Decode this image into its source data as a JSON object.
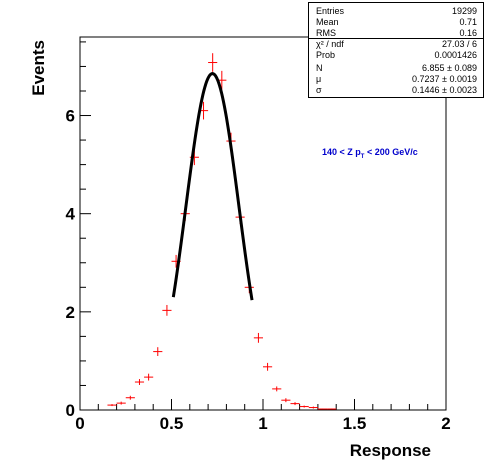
{
  "stats": {
    "rows": [
      {
        "label": "Entries",
        "value": "19299"
      },
      {
        "label": "Mean",
        "value": "0.71"
      },
      {
        "label": "RMS",
        "value": "0.16"
      },
      {
        "label": "χ² / ndf",
        "value": "27.03 / 6"
      },
      {
        "label": "Prob",
        "value": "0.0001426"
      },
      {
        "label": "N",
        "value": "6.855 ± 0.089"
      },
      {
        "label": "μ",
        "value": "0.7237 ± 0.0019"
      },
      {
        "label": "σ",
        "value": "0.1446 ± 0.0023"
      }
    ]
  },
  "chart_data": {
    "type": "scatter",
    "xlabel": "Response",
    "ylabel": "Events",
    "xlim": [
      0,
      2
    ],
    "ylim": [
      0,
      7.6
    ],
    "x_ticks": [
      0,
      0.5,
      1,
      1.5,
      2
    ],
    "x_tick_labels": [
      "0",
      "0.5",
      "1",
      "1.5",
      "2"
    ],
    "y_ticks": [
      0,
      2,
      4,
      6
    ],
    "y_tick_labels": [
      "0",
      "2",
      "4",
      "6"
    ],
    "annotation": {
      "parts": [
        "140 < Z p",
        "T",
        " < 200 GeV/c"
      ],
      "color": "#0000cc"
    },
    "colors": {
      "points": "#ff0000",
      "fit": "#000000",
      "axes": "#000000"
    },
    "bin_width": 0.05,
    "points": {
      "x": [
        0.175,
        0.225,
        0.275,
        0.325,
        0.375,
        0.425,
        0.475,
        0.525,
        0.575,
        0.625,
        0.675,
        0.725,
        0.775,
        0.825,
        0.875,
        0.925,
        0.975,
        1.025,
        1.075,
        1.125,
        1.175,
        1.225,
        1.275,
        1.325,
        1.375
      ],
      "y": [
        0.1,
        0.14,
        0.25,
        0.57,
        0.67,
        1.19,
        2.03,
        3.03,
        4.0,
        5.15,
        6.1,
        7.08,
        6.72,
        5.48,
        3.93,
        2.5,
        1.47,
        0.88,
        0.43,
        0.2,
        0.13,
        0.07,
        0.05,
        0.02,
        0.02
      ],
      "y_err": [
        0.02,
        0.03,
        0.04,
        0.06,
        0.07,
        0.09,
        0.11,
        0.13,
        0.15,
        0.16,
        0.18,
        0.19,
        0.19,
        0.17,
        0.14,
        0.12,
        0.1,
        0.08,
        0.05,
        0.04,
        0.03,
        0.02,
        0.02,
        0.01,
        0.01
      ]
    },
    "fit": {
      "function": "gaus",
      "N": 6.855,
      "mu": 0.7237,
      "sigma": 0.1446,
      "x_range": [
        0.51,
        0.94
      ]
    },
    "grid": false,
    "legend": "top-right"
  }
}
